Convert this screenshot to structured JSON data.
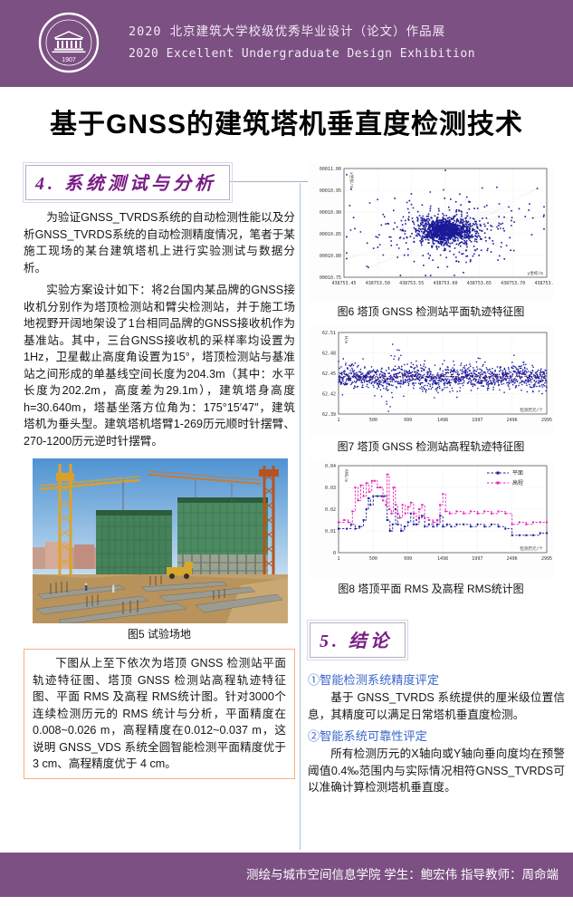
{
  "page": {
    "header": {
      "line1": "2020 北京建筑大学校级优秀毕业设计（论文）作品展",
      "line2": "2020 Excellent Undergraduate Design Exhibition",
      "logo_year": "1907",
      "banner_color": "#7c5083"
    },
    "title": "基于GNSS的建筑塔机垂直度检测技术",
    "sections": {
      "s4_heading": "4. 系统测试与分析",
      "s5_heading": "5. 结论"
    },
    "left": {
      "para1": "为验证GNSS_TVRDS系统的自动检测性能以及分析GNSS_TVRDS系统的自动检测精度情况，笔者于某施工现场的某台建筑塔机上进行实验测试与数据分析。",
      "para2": "实验方案设计如下：将2台国内某品牌的GNSS接收机分别作为塔顶检测站和臂尖检测站，并于施工场地视野开阔地架设了1台相同品牌的GNSS接收机作为基准站。其中，三台GNSS接收机的采样率均设置为1Hz，卫星截止高度角设置为15°，塔顶检测站与基准站之间形成的单基线空间长度为204.3m（其中：水平长度为202.2m，高度差为29.1m），建筑塔身高度h=30.640m，塔基坐落方位角为：175°15′47″，建筑塔机为垂头型。建筑塔机塔臂1-269历元顺时针摆臂、270-1200历元逆时针摆臂。",
      "photo_caption": "图5 试验场地",
      "summary": "下图从上至下依次为塔顶 GNSS 检测站平面轨迹特征图、塔顶 GNSS 检测站高程轨迹特征图、平面 RMS 及高程 RMS统计图。针对3000个连续检测历元的 RMS 统计与分析，平面精度在 0.008~0.026 m，高程精度在0.012~0.037 m，这说明 GNSS_VDS 系统全圆智能检测平面精度优于 3 cm、高程精度优于 4 cm。"
    },
    "right": {
      "conclusion1_heading": "①智能检测系统精度评定",
      "conclusion1_text": "基于 GNSS_TVRDS 系统提供的厘米级位置信息，其精度可以满足日常塔机垂直度检测。",
      "conclusion2_heading": "②智能系统可靠性评定",
      "conclusion2_text": "所有检测历元的X轴向或Y轴向垂向度均在预警阈值0.4‰范围内与实际情况相符GNSS_TVRDS可以准确计算检测塔机垂直度。"
    },
    "footer": {
      "text": "测绘与城市空间信息学院  学生：鲍宏伟  指导教师：周命端"
    }
  },
  "chart_data": [
    {
      "type": "scatter",
      "title": "图6 塔顶 GNSS 检测站平面轨迹特征图",
      "xlabel": "y坐标/m",
      "ylabel": "x坐标/m",
      "xlim": [
        438753.45,
        438753.75
      ],
      "ylim": [
        10.75,
        11.0
      ],
      "xtick_vals": [
        438753.45,
        438753.5,
        438753.55,
        438753.6,
        438753.65,
        438753.7,
        438753.75
      ],
      "xtick_labels": [
        "438753.45",
        "438753.50",
        "438753.55",
        "438753.60",
        "438753.65",
        "438753.70",
        "438753.75"
      ],
      "ytick_vals": [
        10.75,
        10.8,
        10.85,
        10.9,
        10.95,
        11.0
      ],
      "ytick_labels": [
        "00010.75",
        "00010.80",
        "00010.85",
        "00010.90",
        "00010.95",
        "00011.00"
      ],
      "cluster": {
        "center_x": 438753.6,
        "center_y": 10.857,
        "sigma_x": 0.048,
        "sigma_y": 0.034,
        "n_points": 1500
      },
      "point_color": "#1a1a99",
      "grid": "dashed"
    },
    {
      "type": "scatter",
      "title": "图7 塔顶 GNSS 检测站高程轨迹特征图",
      "xlabel": "检测历元/个",
      "ylabel": "H/m",
      "xlim": [
        1,
        2995
      ],
      "ylim": [
        62.39,
        62.51
      ],
      "xtick_vals": [
        1,
        500,
        999,
        1498,
        1997,
        2496,
        2995
      ],
      "xtick_labels": [
        "1",
        "500",
        "999",
        "1498",
        "1997",
        "2496",
        "2995"
      ],
      "ytick_vals": [
        62.39,
        62.42,
        62.45,
        62.48,
        62.51
      ],
      "ytick_labels": [
        "62.39",
        "62.42",
        "62.45",
        "62.48",
        "62.51"
      ],
      "mean": 62.444,
      "noise_sd": 0.0085,
      "reference_line": 62.445,
      "reference_color": "#d40000",
      "dip": {
        "x_start": 690,
        "x_end": 840,
        "min": 62.392
      },
      "spike": {
        "x_start": 755,
        "x_end": 885,
        "max": 62.494
      },
      "n_points": 1300,
      "point_color": "#1a1a99",
      "grid": "dashed"
    },
    {
      "type": "line",
      "title": "图8 塔顶平面 RMS 及高程 RMS统计图",
      "xlabel": "检测历元/个",
      "ylabel": "RMS/m",
      "xlim": [
        1,
        2995
      ],
      "ylim": [
        0,
        0.04
      ],
      "xtick_vals": [
        1,
        500,
        999,
        1498,
        1997,
        2496,
        2995
      ],
      "xtick_labels": [
        "1",
        "500",
        "999",
        "1498",
        "1997",
        "2496",
        "2995"
      ],
      "ytick_vals": [
        0,
        0.01,
        0.02,
        0.03,
        0.04
      ],
      "ytick_labels": [
        "0",
        "0.01",
        "0.02",
        "0.03",
        "0.04"
      ],
      "legend_position": "top-right",
      "series": [
        {
          "name": "平面",
          "color": "#1a1a99",
          "points": [
            [
              1,
              0.011
            ],
            [
              120,
              0.011
            ],
            [
              180,
              0.013
            ],
            [
              240,
              0.011
            ],
            [
              300,
              0.012
            ],
            [
              360,
              0.015
            ],
            [
              400,
              0.02
            ],
            [
              430,
              0.025
            ],
            [
              460,
              0.022
            ],
            [
              500,
              0.026
            ],
            [
              560,
              0.026
            ],
            [
              620,
              0.026
            ],
            [
              660,
              0.026
            ],
            [
              700,
              0.015
            ],
            [
              740,
              0.01
            ],
            [
              780,
              0.013
            ],
            [
              820,
              0.02
            ],
            [
              850,
              0.013
            ],
            [
              900,
              0.01
            ],
            [
              950,
              0.012
            ],
            [
              1000,
              0.014
            ],
            [
              1040,
              0.018
            ],
            [
              1080,
              0.013
            ],
            [
              1120,
              0.013
            ],
            [
              1160,
              0.016
            ],
            [
              1200,
              0.017
            ],
            [
              1240,
              0.012
            ],
            [
              1300,
              0.013
            ],
            [
              1360,
              0.012
            ],
            [
              1420,
              0.013
            ],
            [
              1460,
              0.017
            ],
            [
              1500,
              0.012
            ],
            [
              1560,
              0.013
            ],
            [
              1620,
              0.012
            ],
            [
              1700,
              0.013
            ],
            [
              1800,
              0.013
            ],
            [
              1900,
              0.012
            ],
            [
              2000,
              0.013
            ],
            [
              2100,
              0.012
            ],
            [
              2200,
              0.013
            ],
            [
              2300,
              0.012
            ],
            [
              2400,
              0.011
            ],
            [
              2496,
              0.008
            ],
            [
              2600,
              0.008
            ],
            [
              2700,
              0.008
            ],
            [
              2800,
              0.008
            ],
            [
              2900,
              0.009
            ],
            [
              2995,
              0.009
            ]
          ]
        },
        {
          "name": "高程",
          "color": "#e822bb",
          "points": [
            [
              1,
              0.014
            ],
            [
              80,
              0.015
            ],
            [
              140,
              0.014
            ],
            [
              200,
              0.019
            ],
            [
              240,
              0.03
            ],
            [
              280,
              0.024
            ],
            [
              320,
              0.031
            ],
            [
              360,
              0.026
            ],
            [
              400,
              0.032
            ],
            [
              440,
              0.028
            ],
            [
              480,
              0.033
            ],
            [
              520,
              0.033
            ],
            [
              560,
              0.03
            ],
            [
              600,
              0.03
            ],
            [
              640,
              0.024
            ],
            [
              680,
              0.022
            ],
            [
              700,
              0.036
            ],
            [
              730,
              0.02
            ],
            [
              760,
              0.018
            ],
            [
              790,
              0.03
            ],
            [
              820,
              0.022
            ],
            [
              850,
              0.018
            ],
            [
              880,
              0.016
            ],
            [
              920,
              0.022
            ],
            [
              960,
              0.018
            ],
            [
              1000,
              0.021
            ],
            [
              1040,
              0.023
            ],
            [
              1080,
              0.018
            ],
            [
              1120,
              0.015
            ],
            [
              1160,
              0.02
            ],
            [
              1200,
              0.022
            ],
            [
              1240,
              0.016
            ],
            [
              1300,
              0.015
            ],
            [
              1360,
              0.014
            ],
            [
              1420,
              0.015
            ],
            [
              1460,
              0.022
            ],
            [
              1500,
              0.027
            ],
            [
              1540,
              0.019
            ],
            [
              1600,
              0.018
            ],
            [
              1700,
              0.019
            ],
            [
              1800,
              0.018
            ],
            [
              1900,
              0.019
            ],
            [
              2000,
              0.018
            ],
            [
              2100,
              0.019
            ],
            [
              2200,
              0.018
            ],
            [
              2300,
              0.019
            ],
            [
              2400,
              0.018
            ],
            [
              2496,
              0.013
            ],
            [
              2600,
              0.014
            ],
            [
              2700,
              0.013
            ],
            [
              2800,
              0.014
            ],
            [
              2900,
              0.014
            ],
            [
              2995,
              0.014
            ]
          ]
        }
      ]
    }
  ]
}
